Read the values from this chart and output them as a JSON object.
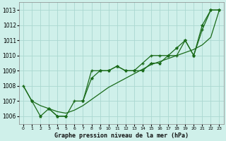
{
  "xlabel": "Graphe pression niveau de la mer (hPa)",
  "bg_color": "#cff0ea",
  "grid_color": "#aad8d0",
  "line_color": "#1a6b1a",
  "hours": [
    0,
    1,
    2,
    3,
    4,
    5,
    6,
    7,
    8,
    9,
    10,
    11,
    12,
    13,
    14,
    15,
    16,
    17,
    18,
    19,
    20,
    21,
    22,
    23
  ],
  "series1": [
    1008.0,
    1007.0,
    null,
    1006.5,
    1006.0,
    1006.0,
    1007.0,
    1007.0,
    1009.0,
    1009.0,
    1009.0,
    1009.3,
    1009.0,
    1009.0,
    1009.5,
    1010.0,
    1010.0,
    1010.0,
    1010.0,
    1011.0,
    1010.0,
    1011.7,
    1013.0,
    1013.0
  ],
  "series2": [
    null,
    1007.0,
    1006.0,
    1006.5,
    1006.0,
    1006.0,
    null,
    1007.0,
    1008.5,
    1009.0,
    1009.0,
    1009.3,
    1009.0,
    1009.0,
    1009.0,
    1009.5,
    1009.5,
    1010.0,
    1010.5,
    1011.0,
    1010.0,
    1012.0,
    1013.0,
    1013.0
  ],
  "trend": [
    1008.0,
    1007.0,
    1006.7,
    1006.5,
    1006.3,
    1006.2,
    1006.4,
    1006.7,
    1007.1,
    1007.5,
    1007.9,
    1008.2,
    1008.5,
    1008.8,
    1009.1,
    1009.4,
    1009.6,
    1009.8,
    1010.0,
    1010.2,
    1010.4,
    1010.7,
    1011.2,
    1013.0
  ],
  "ylim_min": 1005.5,
  "ylim_max": 1013.5,
  "yticks": [
    1006,
    1007,
    1008,
    1009,
    1010,
    1011,
    1012,
    1013
  ]
}
